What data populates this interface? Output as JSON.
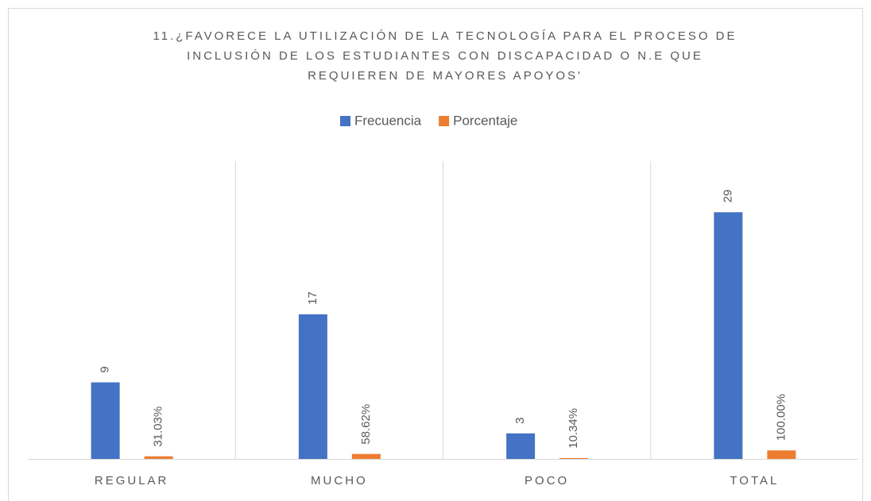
{
  "chart_data": {
    "type": "bar",
    "title": [
      "11.¿FAVORECE LA UTILIZACIÓN DE LA TECNOLOGÍA PARA EL PROCESO DE",
      "INCLUSIÓN DE LOS ESTUDIANTES CON DISCAPACIDAD O N.E QUE",
      "REQUIEREN DE MAYORES APOYOS'"
    ],
    "categories": [
      "REGULAR",
      "MUCHO",
      "POCO",
      "TOTAL"
    ],
    "series": [
      {
        "name": "Frecuencia",
        "color": "#4472c4",
        "values": [
          9,
          17,
          3,
          29
        ]
      },
      {
        "name": "Porcentaje",
        "color": "#ed7d31",
        "values": [
          0.3103,
          0.5862,
          0.1034,
          1.0
        ],
        "value_labels": [
          "31.03%",
          "58.62%",
          "10.34%",
          "100.00%"
        ]
      }
    ],
    "ylim": [
      0,
      35
    ]
  }
}
